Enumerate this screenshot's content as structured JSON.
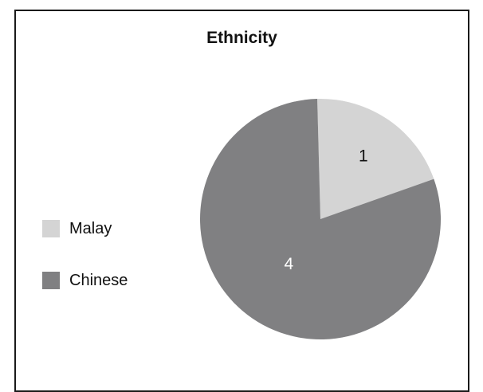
{
  "chart_data": {
    "type": "pie",
    "title": "Ethnicity",
    "categories": [
      "Malay",
      "Chinese"
    ],
    "values": [
      1,
      4
    ],
    "data_labels": [
      "1",
      "4"
    ],
    "colors": [
      "#d4d4d4",
      "#808082"
    ],
    "label_colors": [
      "#111111",
      "#ffffff"
    ],
    "legend_position": "left",
    "start_angle_deg": 90,
    "direction": "clockwise"
  }
}
